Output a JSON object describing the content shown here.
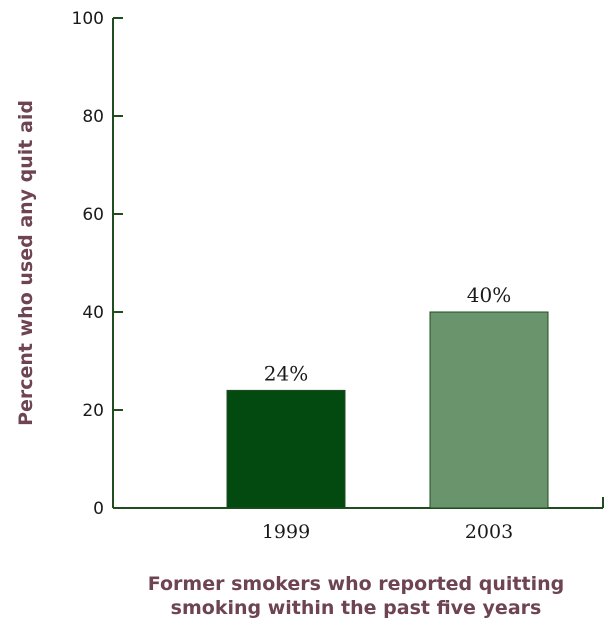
{
  "chart_data": {
    "type": "bar",
    "categories": [
      "1999",
      "2003"
    ],
    "values": [
      24,
      40
    ],
    "data_labels": [
      "24%",
      "40%"
    ],
    "bar_colors": [
      "#034a10",
      "#6a956c"
    ],
    "bar_stroke": "#1f4d1f",
    "ylabel": "Percent who used any quit aid",
    "xlabel_lines": [
      "Former smokers who reported quitting",
      "smoking within the past five years"
    ],
    "ylim": [
      0,
      100
    ],
    "yticks": [
      0,
      20,
      40,
      60,
      80,
      100
    ],
    "axis_color": "#1f4d1f",
    "title_color": "#6e4452",
    "grid": false,
    "legend": "none"
  }
}
